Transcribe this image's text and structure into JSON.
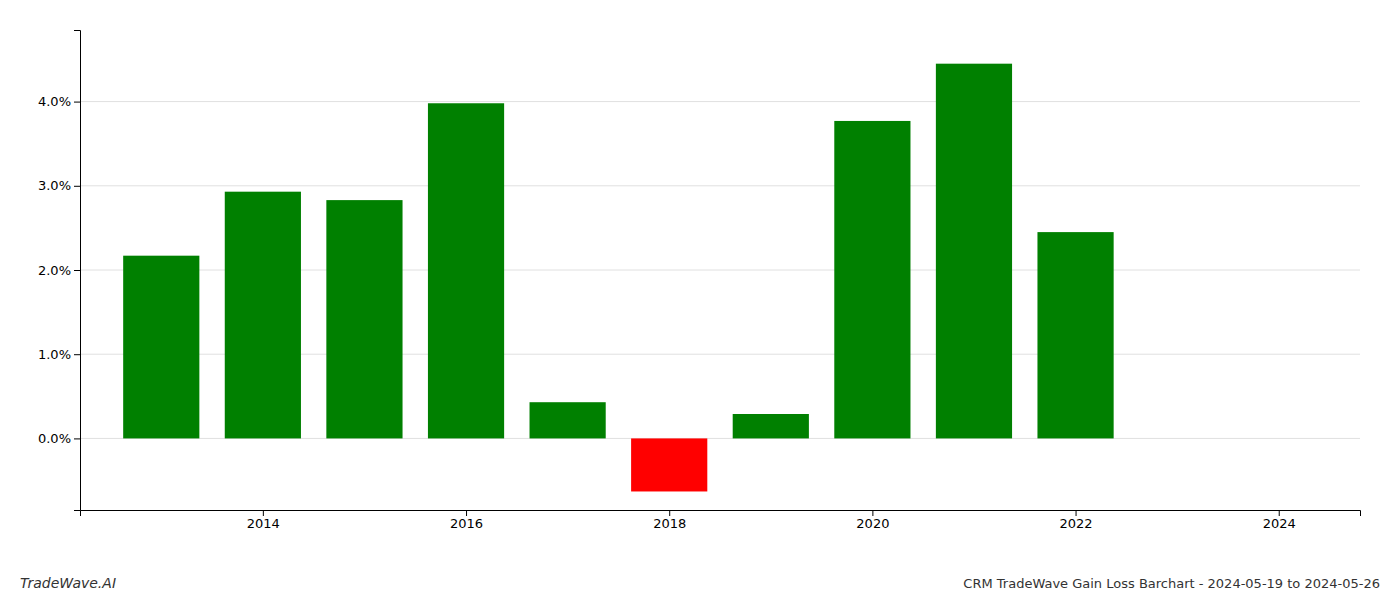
{
  "chart_data": {
    "type": "bar",
    "title": "CRM TradeWave Gain Loss Barchart - 2024-05-19 to 2024-05-26",
    "annotations": [
      "TradeWave.AI"
    ],
    "x": [
      2013,
      2014,
      2015,
      2016,
      2017,
      2018,
      2019,
      2020,
      2021,
      2022
    ],
    "values": [
      2.17,
      2.93,
      2.83,
      3.98,
      0.43,
      -0.63,
      0.29,
      3.77,
      4.45,
      2.45
    ],
    "colors": [
      "#008000",
      "#008000",
      "#008000",
      "#008000",
      "#008000",
      "#ff0000",
      "#008000",
      "#008000",
      "#008000",
      "#008000"
    ],
    "xlim": [
      2012.2,
      2024.8
    ],
    "xticks": [
      2014,
      2016,
      2018,
      2020,
      2022,
      2024
    ],
    "ylim": [
      -0.85,
      4.85
    ],
    "yticks": [
      {
        "value": 0,
        "label": "0.0%"
      },
      {
        "value": 1,
        "label": "1.0%"
      },
      {
        "value": 2,
        "label": "2.0%"
      },
      {
        "value": 3,
        "label": "3.0%"
      },
      {
        "value": 4,
        "label": "4.0%"
      }
    ],
    "grid": true
  }
}
